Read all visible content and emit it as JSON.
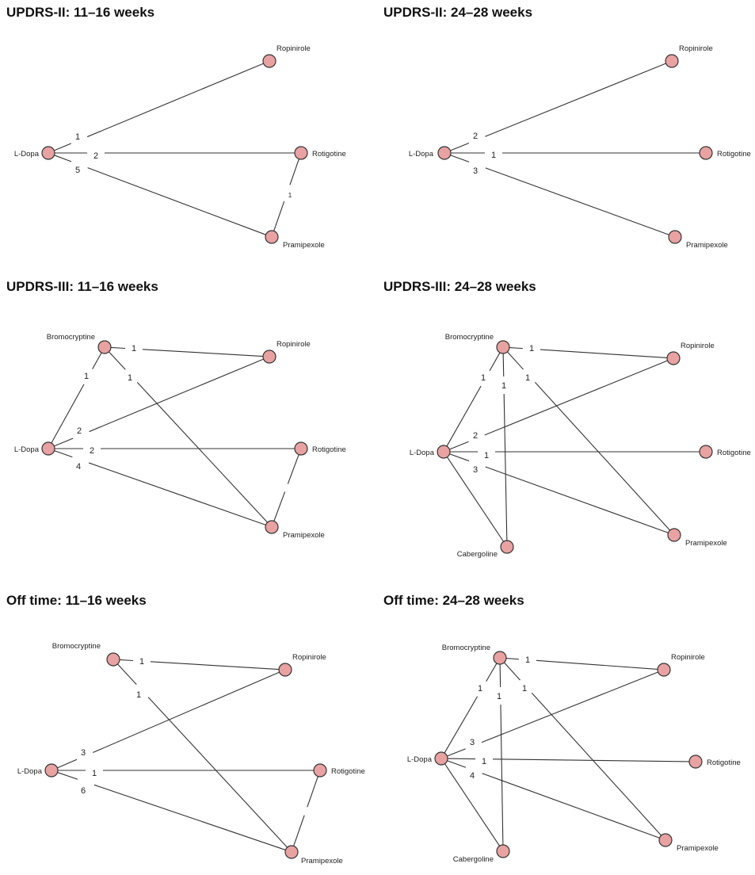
{
  "colors": {
    "node_fill": "#e8a2a2",
    "node_stroke": "#333333",
    "edge": "#333333",
    "background": "#ffffff"
  },
  "panels": [
    {
      "title": "UPDRS-II: 11–16 weeks",
      "nodes": [
        {
          "id": "L-Dopa",
          "label": "L-Dopa"
        },
        {
          "id": "Ropinirole",
          "label": "Ropinirole"
        },
        {
          "id": "Rotigotine",
          "label": "Rotigotine"
        },
        {
          "id": "Pramipexole",
          "label": "Pramipexole"
        }
      ],
      "edges": [
        {
          "from": "L-Dopa",
          "to": "Ropinirole",
          "trials": "1"
        },
        {
          "from": "L-Dopa",
          "to": "Rotigotine",
          "trials": "2"
        },
        {
          "from": "L-Dopa",
          "to": "Pramipexole",
          "trials": "5"
        },
        {
          "from": "Rotigotine",
          "to": "Pramipexole",
          "trials": "1"
        }
      ]
    },
    {
      "title": "UPDRS-II: 24–28 weeks",
      "nodes": [
        {
          "id": "L-Dopa",
          "label": "L-Dopa"
        },
        {
          "id": "Ropinirole",
          "label": "Ropinirole"
        },
        {
          "id": "Rotigotine",
          "label": "Rotigotine"
        },
        {
          "id": "Pramipexole",
          "label": "Pramipexole"
        }
      ],
      "edges": [
        {
          "from": "L-Dopa",
          "to": "Ropinirole",
          "trials": "2"
        },
        {
          "from": "L-Dopa",
          "to": "Rotigotine",
          "trials": "1"
        },
        {
          "from": "L-Dopa",
          "to": "Pramipexole",
          "trials": "3"
        }
      ]
    },
    {
      "title": "UPDRS-III: 11–16 weeks",
      "nodes": [
        {
          "id": "Bromocryptine",
          "label": "Bromocryptine"
        },
        {
          "id": "L-Dopa",
          "label": "L-Dopa"
        },
        {
          "id": "Ropinirole",
          "label": "Ropinirole"
        },
        {
          "id": "Rotigotine",
          "label": "Rotigotine"
        },
        {
          "id": "Pramipexole",
          "label": "Pramipexole"
        }
      ],
      "edges": [
        {
          "from": "Bromocryptine",
          "to": "Ropinirole",
          "trials": "1"
        },
        {
          "from": "Bromocryptine",
          "to": "L-Dopa",
          "trials": "1"
        },
        {
          "from": "Bromocryptine",
          "to": "Pramipexole",
          "trials": "1"
        },
        {
          "from": "L-Dopa",
          "to": "Ropinirole",
          "trials": "2"
        },
        {
          "from": "L-Dopa",
          "to": "Rotigotine",
          "trials": "2"
        },
        {
          "from": "L-Dopa",
          "to": "Pramipexole",
          "trials": "4"
        },
        {
          "from": "Rotigotine",
          "to": "Pramipexole",
          "trials": ""
        }
      ]
    },
    {
      "title": "UPDRS-III: 24–28 weeks",
      "nodes": [
        {
          "id": "Bromocryptine",
          "label": "Bromocryptine"
        },
        {
          "id": "L-Dopa",
          "label": "L-Dopa"
        },
        {
          "id": "Ropinirole",
          "label": "Ropinirole"
        },
        {
          "id": "Rotigotine",
          "label": "Rotigotine"
        },
        {
          "id": "Pramipexole",
          "label": "Pramipexole"
        },
        {
          "id": "Cabergoline",
          "label": "Cabergoline"
        }
      ],
      "edges": [
        {
          "from": "Bromocryptine",
          "to": "Ropinirole",
          "trials": "1"
        },
        {
          "from": "Bromocryptine",
          "to": "L-Dopa",
          "trials": "1"
        },
        {
          "from": "Bromocryptine",
          "to": "Cabergoline",
          "trials": "1"
        },
        {
          "from": "Bromocryptine",
          "to": "Pramipexole",
          "trials": "1"
        },
        {
          "from": "L-Dopa",
          "to": "Ropinirole",
          "trials": "2"
        },
        {
          "from": "L-Dopa",
          "to": "Rotigotine",
          "trials": "1"
        },
        {
          "from": "L-Dopa",
          "to": "Pramipexole",
          "trials": "3"
        },
        {
          "from": "L-Dopa",
          "to": "Cabergoline",
          "trials": ""
        }
      ]
    },
    {
      "title": "Off time: 11–16 weeks",
      "nodes": [
        {
          "id": "Bromocryptine",
          "label": "Bromocryptine"
        },
        {
          "id": "L-Dopa",
          "label": "L-Dopa"
        },
        {
          "id": "Ropinirole",
          "label": "Ropinirole"
        },
        {
          "id": "Rotigotine",
          "label": "Rotigotine"
        },
        {
          "id": "Pramipexole",
          "label": "Pramipexole"
        }
      ],
      "edges": [
        {
          "from": "Bromocryptine",
          "to": "Ropinirole",
          "trials": "1"
        },
        {
          "from": "Bromocryptine",
          "to": "Pramipexole",
          "trials": "1"
        },
        {
          "from": "L-Dopa",
          "to": "Ropinirole",
          "trials": "3"
        },
        {
          "from": "L-Dopa",
          "to": "Rotigotine",
          "trials": "1"
        },
        {
          "from": "L-Dopa",
          "to": "Pramipexole",
          "trials": "6"
        },
        {
          "from": "Rotigotine",
          "to": "Pramipexole",
          "trials": ""
        }
      ]
    },
    {
      "title": "Off time: 24–28 weeks",
      "nodes": [
        {
          "id": "Bromocryptine",
          "label": "Bromocryptine"
        },
        {
          "id": "L-Dopa",
          "label": "L-Dopa"
        },
        {
          "id": "Ropinirole",
          "label": "Ropinirole"
        },
        {
          "id": "Rotigotine",
          "label": "Rotigotine"
        },
        {
          "id": "Pramipexole",
          "label": "Pramipexole"
        },
        {
          "id": "Cabergoline",
          "label": "Cabergoline"
        }
      ],
      "edges": [
        {
          "from": "Bromocryptine",
          "to": "Ropinirole",
          "trials": "1"
        },
        {
          "from": "Bromocryptine",
          "to": "L-Dopa",
          "trials": "1"
        },
        {
          "from": "Bromocryptine",
          "to": "Cabergoline",
          "trials": "1"
        },
        {
          "from": "Bromocryptine",
          "to": "Pramipexole",
          "trials": "1"
        },
        {
          "from": "L-Dopa",
          "to": "Ropinirole",
          "trials": "3"
        },
        {
          "from": "L-Dopa",
          "to": "Rotigotine",
          "trials": "1"
        },
        {
          "from": "L-Dopa",
          "to": "Pramipexole",
          "trials": "4"
        },
        {
          "from": "L-Dopa",
          "to": "Cabergoline",
          "trials": ""
        }
      ]
    }
  ]
}
